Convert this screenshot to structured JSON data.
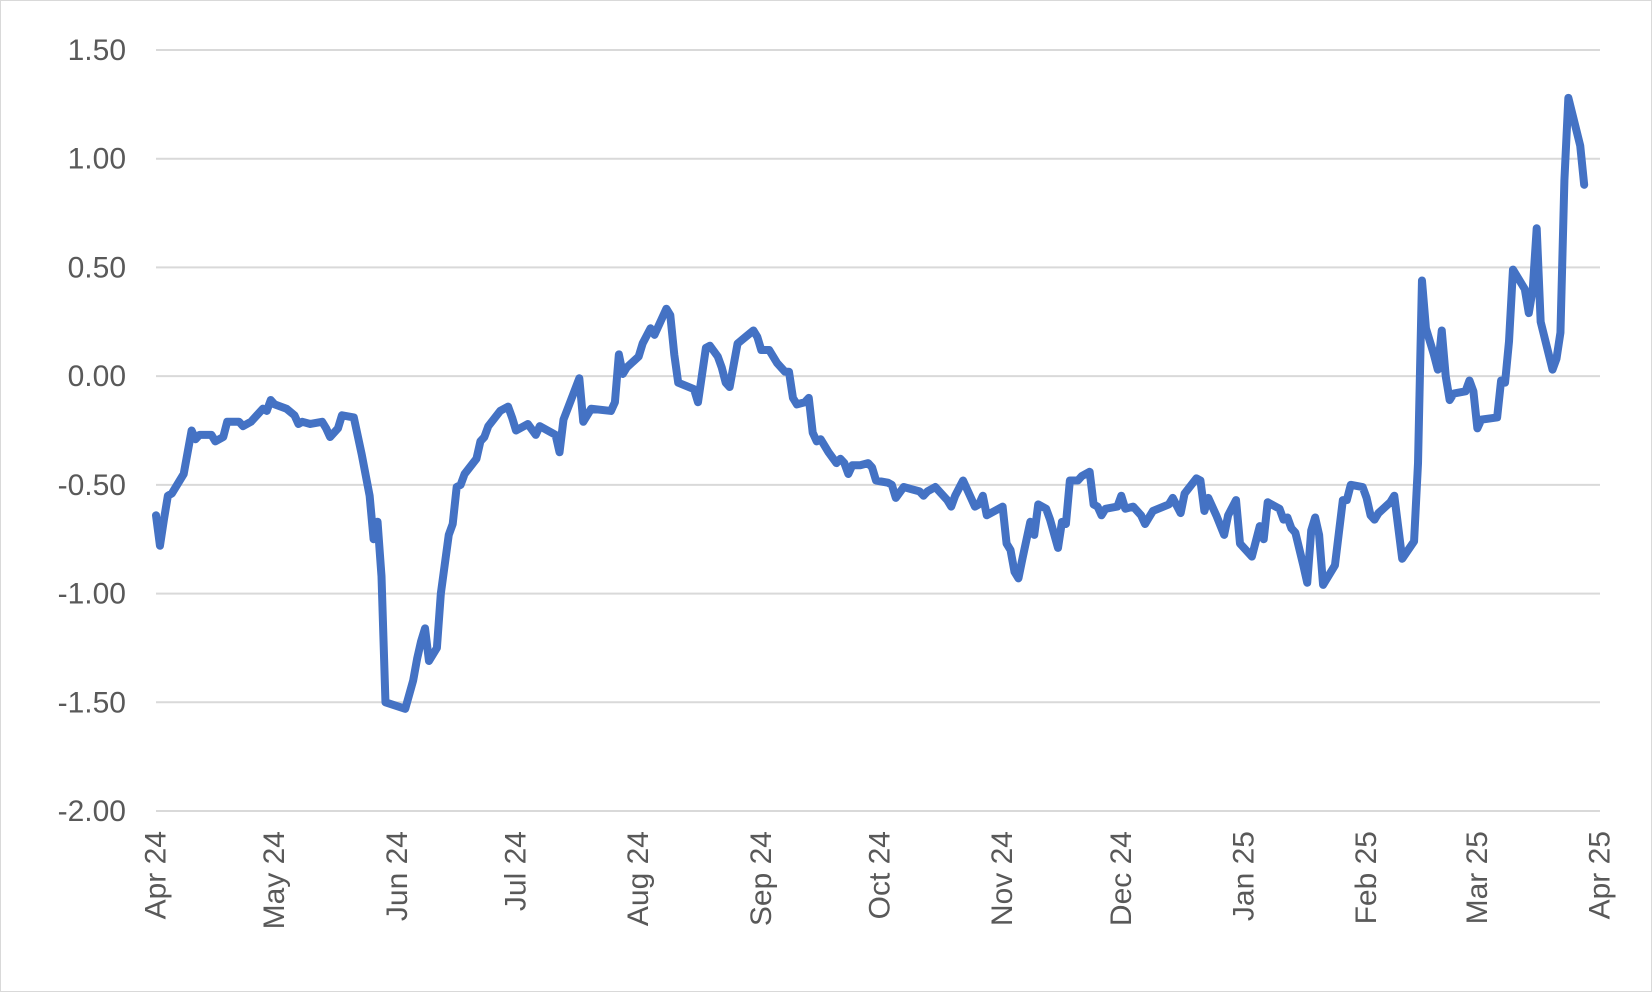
{
  "chart_data": {
    "type": "line",
    "title": "",
    "xlabel": "",
    "ylabel": "",
    "ylim": [
      -2.0,
      1.5
    ],
    "y_ticks": [
      1.5,
      1.0,
      0.5,
      0.0,
      -0.5,
      -1.0,
      -1.5,
      -2.0
    ],
    "y_tick_labels": [
      "1.50",
      "1.00",
      "0.50",
      "0.00",
      "-0.50",
      "-1.00",
      "-1.50",
      "-2.00"
    ],
    "x_range": [
      "2024-04-01",
      "2025-04-01"
    ],
    "x_ticks": [
      "2024-04-01",
      "2024-05-01",
      "2024-06-01",
      "2024-07-01",
      "2024-08-01",
      "2024-09-01",
      "2024-10-01",
      "2024-11-01",
      "2024-12-01",
      "2025-01-01",
      "2025-02-01",
      "2025-03-01",
      "2025-04-01"
    ],
    "x_tick_labels": [
      "Apr 24",
      "May 24",
      "Jun 24",
      "Jul 24",
      "Aug 24",
      "Sep 24",
      "Oct 24",
      "Nov 24",
      "Dec 24",
      "Jan 25",
      "Feb 25",
      "Mar 25",
      "Apr 25"
    ],
    "grid": true,
    "legend": "none",
    "series": [
      {
        "color": "#4472C4",
        "points": [
          [
            "2024-04-01",
            -0.64
          ],
          [
            "2024-04-02",
            -0.78
          ],
          [
            "2024-04-03",
            -0.66
          ],
          [
            "2024-04-04",
            -0.55
          ],
          [
            "2024-04-05",
            -0.54
          ],
          [
            "2024-04-08",
            -0.45
          ],
          [
            "2024-04-10",
            -0.25
          ],
          [
            "2024-04-11",
            -0.29
          ],
          [
            "2024-04-12",
            -0.27
          ],
          [
            "2024-04-15",
            -0.27
          ],
          [
            "2024-04-16",
            -0.3
          ],
          [
            "2024-04-18",
            -0.28
          ],
          [
            "2024-04-19",
            -0.21
          ],
          [
            "2024-04-22",
            -0.21
          ],
          [
            "2024-04-23",
            -0.23
          ],
          [
            "2024-04-25",
            -0.21
          ],
          [
            "2024-04-28",
            -0.15
          ],
          [
            "2024-04-29",
            -0.16
          ],
          [
            "2024-04-30",
            -0.11
          ],
          [
            "2024-05-01",
            -0.13
          ],
          [
            "2024-05-04",
            -0.15
          ],
          [
            "2024-05-06",
            -0.18
          ],
          [
            "2024-05-07",
            -0.22
          ],
          [
            "2024-05-08",
            -0.21
          ],
          [
            "2024-05-10",
            -0.22
          ],
          [
            "2024-05-13",
            -0.21
          ],
          [
            "2024-05-14",
            -0.24
          ],
          [
            "2024-05-15",
            -0.28
          ],
          [
            "2024-05-17",
            -0.24
          ],
          [
            "2024-05-18",
            -0.18
          ],
          [
            "2024-05-21",
            -0.19
          ],
          [
            "2024-05-23",
            -0.36
          ],
          [
            "2024-05-25",
            -0.55
          ],
          [
            "2024-05-26",
            -0.75
          ],
          [
            "2024-05-27",
            -0.67
          ],
          [
            "2024-05-28",
            -0.92
          ],
          [
            "2024-05-29",
            -1.5
          ],
          [
            "2024-06-03",
            -1.53
          ],
          [
            "2024-06-05",
            -1.4
          ],
          [
            "2024-06-06",
            -1.3
          ],
          [
            "2024-06-07",
            -1.22
          ],
          [
            "2024-06-08",
            -1.16
          ],
          [
            "2024-06-09",
            -1.31
          ],
          [
            "2024-06-11",
            -1.25
          ],
          [
            "2024-06-12",
            -1.0
          ],
          [
            "2024-06-14",
            -0.73
          ],
          [
            "2024-06-15",
            -0.68
          ],
          [
            "2024-06-16",
            -0.51
          ],
          [
            "2024-06-17",
            -0.5
          ],
          [
            "2024-06-18",
            -0.45
          ],
          [
            "2024-06-21",
            -0.38
          ],
          [
            "2024-06-22",
            -0.3
          ],
          [
            "2024-06-23",
            -0.28
          ],
          [
            "2024-06-24",
            -0.23
          ],
          [
            "2024-06-27",
            -0.16
          ],
          [
            "2024-06-28",
            -0.15
          ],
          [
            "2024-06-29",
            -0.14
          ],
          [
            "2024-06-30",
            -0.19
          ],
          [
            "2024-07-01",
            -0.25
          ],
          [
            "2024-07-04",
            -0.22
          ],
          [
            "2024-07-06",
            -0.27
          ],
          [
            "2024-07-07",
            -0.23
          ],
          [
            "2024-07-09",
            -0.25
          ],
          [
            "2024-07-11",
            -0.27
          ],
          [
            "2024-07-12",
            -0.35
          ],
          [
            "2024-07-13",
            -0.2
          ],
          [
            "2024-07-17",
            -0.01
          ],
          [
            "2024-07-18",
            -0.21
          ],
          [
            "2024-07-20",
            -0.15
          ],
          [
            "2024-07-25",
            -0.16
          ],
          [
            "2024-07-26",
            -0.12
          ],
          [
            "2024-07-27",
            0.1
          ],
          [
            "2024-07-28",
            0.01
          ],
          [
            "2024-07-29",
            0.04
          ],
          [
            "2024-08-01",
            0.09
          ],
          [
            "2024-08-02",
            0.15
          ],
          [
            "2024-08-04",
            0.22
          ],
          [
            "2024-08-05",
            0.19
          ],
          [
            "2024-08-08",
            0.31
          ],
          [
            "2024-08-09",
            0.28
          ],
          [
            "2024-08-10",
            0.1
          ],
          [
            "2024-08-11",
            -0.03
          ],
          [
            "2024-08-15",
            -0.06
          ],
          [
            "2024-08-16",
            -0.12
          ],
          [
            "2024-08-18",
            0.13
          ],
          [
            "2024-08-19",
            0.14
          ],
          [
            "2024-08-21",
            0.09
          ],
          [
            "2024-08-22",
            0.04
          ],
          [
            "2024-08-23",
            -0.03
          ],
          [
            "2024-08-24",
            -0.05
          ],
          [
            "2024-08-26",
            0.15
          ],
          [
            "2024-08-28",
            0.18
          ],
          [
            "2024-08-30",
            0.21
          ],
          [
            "2024-08-31",
            0.18
          ],
          [
            "2024-09-01",
            0.12
          ],
          [
            "2024-09-03",
            0.12
          ],
          [
            "2024-09-05",
            0.06
          ],
          [
            "2024-09-07",
            0.02
          ],
          [
            "2024-09-08",
            0.02
          ],
          [
            "2024-09-09",
            -0.1
          ],
          [
            "2024-09-10",
            -0.13
          ],
          [
            "2024-09-12",
            -0.12
          ],
          [
            "2024-09-13",
            -0.1
          ],
          [
            "2024-09-14",
            -0.26
          ],
          [
            "2024-09-15",
            -0.3
          ],
          [
            "2024-09-16",
            -0.29
          ],
          [
            "2024-09-18",
            -0.35
          ],
          [
            "2024-09-20",
            -0.4
          ],
          [
            "2024-09-21",
            -0.38
          ],
          [
            "2024-09-22",
            -0.4
          ],
          [
            "2024-09-23",
            -0.45
          ],
          [
            "2024-09-24",
            -0.41
          ],
          [
            "2024-09-26",
            -0.41
          ],
          [
            "2024-09-28",
            -0.4
          ],
          [
            "2024-09-29",
            -0.42
          ],
          [
            "2024-09-30",
            -0.48
          ],
          [
            "2024-10-03",
            -0.49
          ],
          [
            "2024-10-04",
            -0.5
          ],
          [
            "2024-10-05",
            -0.56
          ],
          [
            "2024-10-07",
            -0.51
          ],
          [
            "2024-10-09",
            -0.52
          ],
          [
            "2024-10-11",
            -0.53
          ],
          [
            "2024-10-12",
            -0.55
          ],
          [
            "2024-10-13",
            -0.53
          ],
          [
            "2024-10-15",
            -0.51
          ],
          [
            "2024-10-18",
            -0.57
          ],
          [
            "2024-10-19",
            -0.6
          ],
          [
            "2024-10-20",
            -0.55
          ],
          [
            "2024-10-22",
            -0.48
          ],
          [
            "2024-10-24",
            -0.56
          ],
          [
            "2024-10-25",
            -0.6
          ],
          [
            "2024-10-26",
            -0.59
          ],
          [
            "2024-10-27",
            -0.55
          ],
          [
            "2024-10-28",
            -0.64
          ],
          [
            "2024-11-01",
            -0.6
          ],
          [
            "2024-11-02",
            -0.77
          ],
          [
            "2024-11-03",
            -0.8
          ],
          [
            "2024-11-04",
            -0.9
          ],
          [
            "2024-11-05",
            -0.93
          ],
          [
            "2024-11-06",
            -0.84
          ],
          [
            "2024-11-08",
            -0.67
          ],
          [
            "2024-11-09",
            -0.73
          ],
          [
            "2024-11-10",
            -0.59
          ],
          [
            "2024-11-12",
            -0.61
          ],
          [
            "2024-11-13",
            -0.66
          ],
          [
            "2024-11-15",
            -0.79
          ],
          [
            "2024-11-16",
            -0.67
          ],
          [
            "2024-11-17",
            -0.68
          ],
          [
            "2024-11-18",
            -0.48
          ],
          [
            "2024-11-20",
            -0.48
          ],
          [
            "2024-11-21",
            -0.46
          ],
          [
            "2024-11-23",
            -0.44
          ],
          [
            "2024-11-24",
            -0.59
          ],
          [
            "2024-11-25",
            -0.6
          ],
          [
            "2024-11-26",
            -0.64
          ],
          [
            "2024-11-27",
            -0.61
          ],
          [
            "2024-11-30",
            -0.6
          ],
          [
            "2024-12-01",
            -0.55
          ],
          [
            "2024-12-02",
            -0.61
          ],
          [
            "2024-12-04",
            -0.6
          ],
          [
            "2024-12-06",
            -0.64
          ],
          [
            "2024-12-07",
            -0.68
          ],
          [
            "2024-12-08",
            -0.65
          ],
          [
            "2024-12-09",
            -0.62
          ],
          [
            "2024-12-13",
            -0.59
          ],
          [
            "2024-12-14",
            -0.56
          ],
          [
            "2024-12-16",
            -0.63
          ],
          [
            "2024-12-17",
            -0.54
          ],
          [
            "2024-12-20",
            -0.47
          ],
          [
            "2024-12-21",
            -0.48
          ],
          [
            "2024-12-22",
            -0.62
          ],
          [
            "2024-12-23",
            -0.56
          ],
          [
            "2024-12-25",
            -0.64
          ],
          [
            "2024-12-27",
            -0.73
          ],
          [
            "2024-12-28",
            -0.64
          ],
          [
            "2024-12-30",
            -0.57
          ],
          [
            "2024-12-31",
            -0.77
          ],
          [
            "2025-01-03",
            -0.83
          ],
          [
            "2025-01-05",
            -0.69
          ],
          [
            "2025-01-06",
            -0.75
          ],
          [
            "2025-01-07",
            -0.58
          ],
          [
            "2025-01-09",
            -0.6
          ],
          [
            "2025-01-10",
            -0.61
          ],
          [
            "2025-01-11",
            -0.66
          ],
          [
            "2025-01-12",
            -0.65
          ],
          [
            "2025-01-13",
            -0.7
          ],
          [
            "2025-01-14",
            -0.72
          ],
          [
            "2025-01-16",
            -0.87
          ],
          [
            "2025-01-17",
            -0.95
          ],
          [
            "2025-01-18",
            -0.71
          ],
          [
            "2025-01-19",
            -0.65
          ],
          [
            "2025-01-20",
            -0.73
          ],
          [
            "2025-01-21",
            -0.96
          ],
          [
            "2025-01-24",
            -0.87
          ],
          [
            "2025-01-25",
            -0.72
          ],
          [
            "2025-01-26",
            -0.57
          ],
          [
            "2025-01-27",
            -0.57
          ],
          [
            "2025-01-28",
            -0.5
          ],
          [
            "2025-01-31",
            -0.51
          ],
          [
            "2025-02-01",
            -0.56
          ],
          [
            "2025-02-02",
            -0.64
          ],
          [
            "2025-02-03",
            -0.66
          ],
          [
            "2025-02-04",
            -0.63
          ],
          [
            "2025-02-07",
            -0.58
          ],
          [
            "2025-02-08",
            -0.55
          ],
          [
            "2025-02-10",
            -0.84
          ],
          [
            "2025-02-13",
            -0.76
          ],
          [
            "2025-02-14",
            -0.4
          ],
          [
            "2025-02-15",
            0.44
          ],
          [
            "2025-02-16",
            0.22
          ],
          [
            "2025-02-18",
            0.1
          ],
          [
            "2025-02-19",
            0.03
          ],
          [
            "2025-02-20",
            0.21
          ],
          [
            "2025-02-21",
            0.0
          ],
          [
            "2025-02-22",
            -0.11
          ],
          [
            "2025-02-23",
            -0.08
          ],
          [
            "2025-02-26",
            -0.07
          ],
          [
            "2025-02-27",
            -0.02
          ],
          [
            "2025-02-28",
            -0.07
          ],
          [
            "2025-03-01",
            -0.24
          ],
          [
            "2025-03-02",
            -0.2
          ],
          [
            "2025-03-06",
            -0.19
          ],
          [
            "2025-03-07",
            -0.02
          ],
          [
            "2025-03-08",
            -0.03
          ],
          [
            "2025-03-09",
            0.16
          ],
          [
            "2025-03-10",
            0.49
          ],
          [
            "2025-03-13",
            0.4
          ],
          [
            "2025-03-14",
            0.29
          ],
          [
            "2025-03-15",
            0.4
          ],
          [
            "2025-03-16",
            0.68
          ],
          [
            "2025-03-17",
            0.25
          ],
          [
            "2025-03-20",
            0.03
          ],
          [
            "2025-03-21",
            0.08
          ],
          [
            "2025-03-22",
            0.2
          ],
          [
            "2025-03-23",
            0.9
          ],
          [
            "2025-03-24",
            1.28
          ],
          [
            "2025-03-27",
            1.06
          ],
          [
            "2025-03-28",
            0.88
          ]
        ]
      }
    ]
  }
}
